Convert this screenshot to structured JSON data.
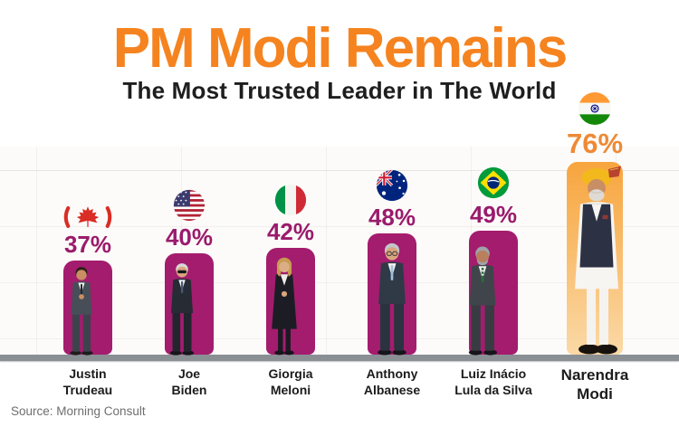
{
  "header": {
    "title": "PM Modi Remains",
    "subtitle": "The Most Trusted Leader in The World"
  },
  "source": {
    "label": "Source: Morning Consult"
  },
  "palette": {
    "title_orange": "#F5831F",
    "subtitle_black": "#1E1E1E",
    "percent_magenta": "#9A1B6C",
    "percent_orange": "#EE8A35",
    "bar_magenta": "#A41C6E",
    "bar_orange_top": "#F7A53E",
    "bar_orange_bottom": "#FBD9A6",
    "floor_gray": "#8A8F94",
    "name_black": "#1B1B1B",
    "source_gray": "#6E6E6E"
  },
  "chart_data": {
    "type": "bar",
    "title": "PM Modi Remains — The Most Trusted Leader in The World",
    "categories": [
      "Justin Trudeau",
      "Joe Biden",
      "Giorgia Meloni",
      "Anthony Albanese",
      "Luiz Inácio Lula da Silva",
      "Narendra Modi"
    ],
    "countries": [
      "Canada",
      "United States",
      "Italy",
      "Australia",
      "Brazil",
      "India"
    ],
    "values": [
      37,
      40,
      42,
      48,
      49,
      76
    ],
    "unit": "%",
    "ylim": [
      0,
      100
    ],
    "grid": "faint wall grid",
    "legend": "none",
    "highlight_category": "Narendra Modi",
    "bar_colors": [
      "#A41C6E",
      "#A41C6E",
      "#A41C6E",
      "#A41C6E",
      "#A41C6E",
      "#F7A53E"
    ],
    "source": "Morning Consult"
  },
  "leaders": [
    {
      "name_line1": "Justin",
      "name_line2": "Trudeau",
      "country": "Canada",
      "value": 37,
      "value_label": "37%",
      "flag": "canada-flag-icon"
    },
    {
      "name_line1": "Joe",
      "name_line2": "Biden",
      "country": "United States",
      "value": 40,
      "value_label": "40%",
      "flag": "usa-flag-icon"
    },
    {
      "name_line1": "Giorgia",
      "name_line2": "Meloni",
      "country": "Italy",
      "value": 42,
      "value_label": "42%",
      "flag": "italy-flag-icon"
    },
    {
      "name_line1": "Anthony",
      "name_line2": "Albanese",
      "country": "Australia",
      "value": 48,
      "value_label": "48%",
      "flag": "australia-flag-icon"
    },
    {
      "name_line1": "Luiz Inácio",
      "name_line2": "Lula da Silva",
      "country": "Brazil",
      "value": 49,
      "value_label": "49%",
      "flag": "brazil-flag-icon"
    },
    {
      "name_line1": "Narendra",
      "name_line2": "Modi",
      "country": "India",
      "value": 76,
      "value_label": "76%",
      "flag": "india-flag-icon"
    }
  ]
}
